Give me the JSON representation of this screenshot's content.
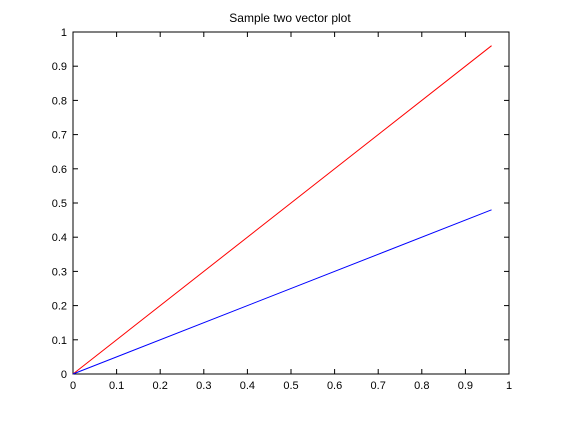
{
  "chart_data": {
    "type": "line",
    "title": "Sample two vector plot",
    "xlabel": "",
    "ylabel": "",
    "xlim": [
      0,
      1
    ],
    "ylim": [
      0,
      1
    ],
    "xticks": [
      "0",
      "0.1",
      "0.2",
      "0.3",
      "0.4",
      "0.5",
      "0.6",
      "0.7",
      "0.8",
      "0.9",
      "1"
    ],
    "yticks": [
      "0",
      "0.1",
      "0.2",
      "0.3",
      "0.4",
      "0.5",
      "0.6",
      "0.7",
      "0.8",
      "0.9",
      "1"
    ],
    "grid": false,
    "legend": "none",
    "series": [
      {
        "color": "#ff0000",
        "x": [
          0,
          0.96
        ],
        "y": [
          0,
          0.96
        ]
      },
      {
        "color": "#0000ff",
        "x": [
          0,
          0.96
        ],
        "y": [
          0,
          0.48
        ]
      }
    ]
  }
}
